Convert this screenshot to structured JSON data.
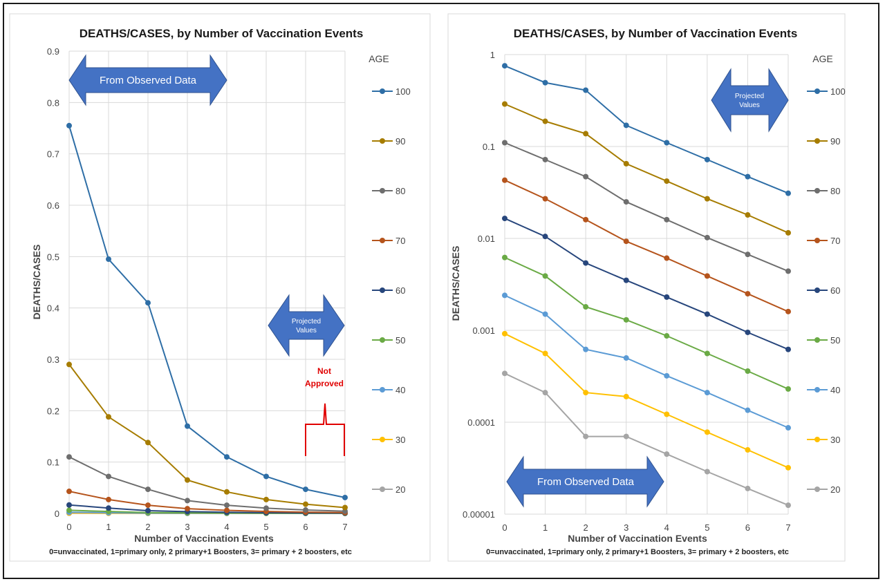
{
  "colors": {
    "100": "#2e6ea6",
    "90": "#a67c00",
    "80": "#6e6e6e",
    "70": "#b5541c",
    "60": "#27467c",
    "50": "#6aaa45",
    "40": "#5b9bd5",
    "30": "#ffc000",
    "20": "#a5a5a5",
    "arrow": "#4472c4",
    "red": "#e00000"
  },
  "chart_data": [
    {
      "type": "line",
      "title": "DEATHS/CASES, by Number of Vaccination Events",
      "xlabel": "Number of Vaccination Events",
      "ylabel": "DEATHS/CASES",
      "footnote": "0=unvaccinated, 1=primary only, 2 primary+1 Boosters, 3= primary + 2 boosters, etc",
      "legend_title": "AGE",
      "legend_position": "right",
      "grid": true,
      "scale": "linear",
      "x": [
        0,
        1,
        2,
        3,
        4,
        5,
        6,
        7
      ],
      "xticks": [
        "0",
        "1",
        "2",
        "3",
        "4",
        "5",
        "6",
        "7"
      ],
      "ylim": [
        0,
        0.9
      ],
      "yticks": [
        "0",
        "0.1",
        "0.2",
        "0.3",
        "0.4",
        "0.5",
        "0.6",
        "0.7",
        "0.8",
        "0.9"
      ],
      "ytick_values": [
        0,
        0.1,
        0.2,
        0.3,
        0.4,
        0.5,
        0.6,
        0.7,
        0.8,
        0.9
      ],
      "annotations": {
        "observed": "From Observed Data",
        "projected": [
          "Projected",
          "Values"
        ],
        "not_approved": [
          "Not",
          "Approved"
        ]
      },
      "series": [
        {
          "name": "100",
          "values": [
            0.755,
            0.495,
            0.41,
            0.17,
            0.11,
            0.072,
            0.047,
            0.031
          ]
        },
        {
          "name": "90",
          "values": [
            0.29,
            0.188,
            0.138,
            0.065,
            0.042,
            0.027,
            0.018,
            0.0115
          ]
        },
        {
          "name": "80",
          "values": [
            0.11,
            0.072,
            0.047,
            0.025,
            0.016,
            0.0102,
            0.0067,
            0.0044
          ]
        },
        {
          "name": "70",
          "values": [
            0.043,
            0.027,
            0.016,
            0.0093,
            0.0061,
            0.0039,
            0.0025,
            0.0016
          ]
        },
        {
          "name": "60",
          "values": [
            0.0165,
            0.0105,
            0.0054,
            0.0035,
            0.0023,
            0.0015,
            0.00095,
            0.00062
          ]
        },
        {
          "name": "50",
          "values": [
            0.0062,
            0.0039,
            0.0018,
            0.0013,
            0.00087,
            0.00056,
            0.00036,
            0.00023
          ]
        },
        {
          "name": "40",
          "values": [
            0.0024,
            0.0015,
            0.00062,
            0.0005,
            0.00032,
            0.00021,
            0.000135,
            8.7e-05
          ]
        },
        {
          "name": "30",
          "values": [
            0.00092,
            0.00056,
            0.00021,
            0.00019,
            0.000122,
            7.8e-05,
            5e-05,
            3.2e-05
          ]
        },
        {
          "name": "20",
          "values": [
            0.00034,
            0.00021,
            7e-05,
            7e-05,
            4.5e-05,
            2.9e-05,
            1.9e-05,
            1.25e-05
          ]
        }
      ]
    },
    {
      "type": "line",
      "title": "DEATHS/CASES, by Number of Vaccination Events",
      "xlabel": "Number of Vaccination Events",
      "ylabel": "DEATHS/CASES",
      "footnote": "0=unvaccinated, 1=primary only, 2 primary+1 Boosters, 3= primary + 2 boosters, etc",
      "legend_title": "AGE",
      "legend_position": "right",
      "grid": true,
      "scale": "log",
      "x": [
        0,
        1,
        2,
        3,
        4,
        5,
        6,
        7
      ],
      "xticks": [
        "0",
        "1",
        "2",
        "3",
        "4",
        "5",
        "6",
        "7"
      ],
      "ylim": [
        1e-05,
        1
      ],
      "yticks": [
        "1",
        "0.1",
        "0.01",
        "0.001",
        "0.0001",
        "0.00001"
      ],
      "ytick_values": [
        1,
        0.1,
        0.01,
        0.001,
        0.0001,
        1e-05
      ],
      "annotations": {
        "observed": "From Observed Data",
        "projected": [
          "Projected",
          "Values"
        ]
      },
      "series": [
        {
          "name": "100",
          "values": [
            0.755,
            0.495,
            0.41,
            0.17,
            0.11,
            0.072,
            0.047,
            0.031
          ]
        },
        {
          "name": "90",
          "values": [
            0.29,
            0.188,
            0.138,
            0.065,
            0.042,
            0.027,
            0.018,
            0.0115
          ]
        },
        {
          "name": "80",
          "values": [
            0.11,
            0.072,
            0.047,
            0.025,
            0.016,
            0.0102,
            0.0067,
            0.0044
          ]
        },
        {
          "name": "70",
          "values": [
            0.043,
            0.027,
            0.016,
            0.0093,
            0.0061,
            0.0039,
            0.0025,
            0.0016
          ]
        },
        {
          "name": "60",
          "values": [
            0.0165,
            0.0105,
            0.0054,
            0.0035,
            0.0023,
            0.0015,
            0.00095,
            0.00062
          ]
        },
        {
          "name": "50",
          "values": [
            0.0062,
            0.0039,
            0.0018,
            0.0013,
            0.00087,
            0.00056,
            0.00036,
            0.00023
          ]
        },
        {
          "name": "40",
          "values": [
            0.0024,
            0.0015,
            0.00062,
            0.0005,
            0.00032,
            0.00021,
            0.000135,
            8.7e-05
          ]
        },
        {
          "name": "30",
          "values": [
            0.00092,
            0.00056,
            0.00021,
            0.00019,
            0.000122,
            7.8e-05,
            5e-05,
            3.2e-05
          ]
        },
        {
          "name": "20",
          "values": [
            0.00034,
            0.00021,
            7e-05,
            7e-05,
            4.5e-05,
            2.9e-05,
            1.9e-05,
            1.25e-05
          ]
        }
      ]
    }
  ]
}
